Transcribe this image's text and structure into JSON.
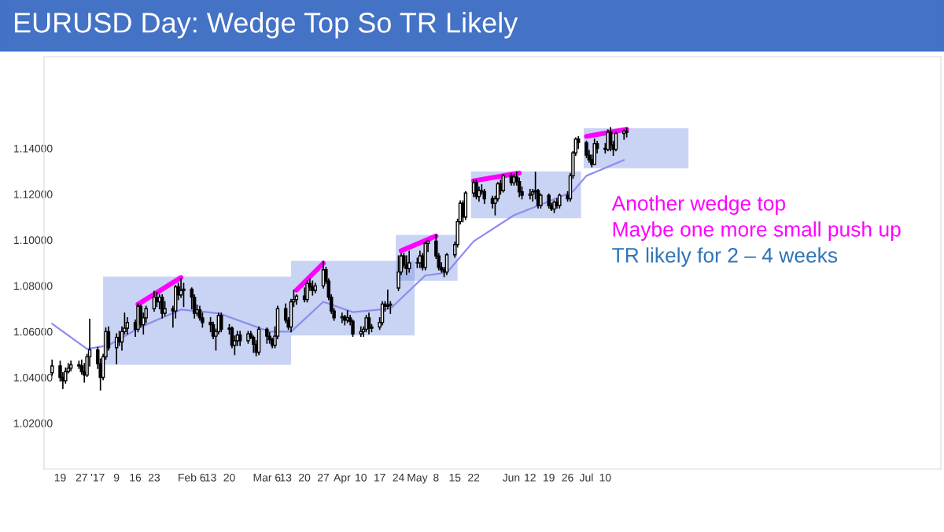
{
  "chart_data": {
    "type": "candlestick",
    "title": "EURUSD Day: Wedge Top So TR Likely",
    "annotations": [
      "Another wedge top",
      "Maybe one more small push up",
      "TR likely for 2 – 4 weeks"
    ],
    "xlim": [
      "2016-12-13",
      "2017-11-12"
    ],
    "ylim": [
      1.0,
      1.18
    ],
    "xticks": [
      {
        "value": "2016-12-19",
        "label": "19"
      },
      {
        "value": "2016-12-27",
        "label": "27"
      },
      {
        "value": "2017-01-02",
        "label": "'17"
      },
      {
        "value": "2017-01-09",
        "label": "9"
      },
      {
        "value": "2017-01-16",
        "label": "16"
      },
      {
        "value": "2017-01-23",
        "label": "23"
      },
      {
        "value": "2017-02-06",
        "label": "Feb 6"
      },
      {
        "value": "2017-02-13",
        "label": "13"
      },
      {
        "value": "2017-02-20",
        "label": "20"
      },
      {
        "value": "2017-03-06",
        "label": "Mar 6"
      },
      {
        "value": "2017-03-13",
        "label": "13"
      },
      {
        "value": "2017-03-20",
        "label": "20"
      },
      {
        "value": "2017-03-27",
        "label": "27"
      },
      {
        "value": "2017-04-03",
        "label": "Apr"
      },
      {
        "value": "2017-04-10",
        "label": "10"
      },
      {
        "value": "2017-04-17",
        "label": "17"
      },
      {
        "value": "2017-04-24",
        "label": "24"
      },
      {
        "value": "2017-05-01",
        "label": "May"
      },
      {
        "value": "2017-05-08",
        "label": "8"
      },
      {
        "value": "2017-05-15",
        "label": "15"
      },
      {
        "value": "2017-05-22",
        "label": "22"
      },
      {
        "value": "2017-06-05",
        "label": "Jun"
      },
      {
        "value": "2017-06-12",
        "label": "12"
      },
      {
        "value": "2017-06-19",
        "label": "19"
      },
      {
        "value": "2017-06-26",
        "label": "26"
      },
      {
        "value": "2017-07-03",
        "label": "Jul"
      },
      {
        "value": "2017-07-10",
        "label": "10"
      }
    ],
    "yticks": [
      {
        "value": 1.02,
        "label": "1.02000"
      },
      {
        "value": 1.04,
        "label": "1.04000"
      },
      {
        "value": 1.06,
        "label": "1.06000"
      },
      {
        "value": 1.08,
        "label": "1.08000"
      },
      {
        "value": 1.1,
        "label": "1.10000"
      },
      {
        "value": 1.12,
        "label": "1.12000"
      },
      {
        "value": 1.14,
        "label": "1.14000"
      }
    ],
    "x": [
      "2016-12-16",
      "2016-12-19",
      "2016-12-20",
      "2016-12-21",
      "2016-12-22",
      "2016-12-23",
      "2016-12-26",
      "2016-12-27",
      "2016-12-28",
      "2016-12-29",
      "2016-12-30",
      "2017-01-02",
      "2017-01-03",
      "2017-01-04",
      "2017-01-05",
      "2017-01-06",
      "2017-01-09",
      "2017-01-10",
      "2017-01-11",
      "2017-01-12",
      "2017-01-13",
      "2017-01-16",
      "2017-01-17",
      "2017-01-18",
      "2017-01-19",
      "2017-01-20",
      "2017-01-23",
      "2017-01-24",
      "2017-01-25",
      "2017-01-26",
      "2017-01-27",
      "2017-01-30",
      "2017-01-31",
      "2017-02-01",
      "2017-02-02",
      "2017-02-03",
      "2017-02-06",
      "2017-02-07",
      "2017-02-08",
      "2017-02-09",
      "2017-02-10",
      "2017-02-13",
      "2017-02-14",
      "2017-02-15",
      "2017-02-16",
      "2017-02-17",
      "2017-02-20",
      "2017-02-21",
      "2017-02-22",
      "2017-02-23",
      "2017-02-24",
      "2017-02-27",
      "2017-02-28",
      "2017-03-01",
      "2017-03-02",
      "2017-03-03",
      "2017-03-06",
      "2017-03-07",
      "2017-03-08",
      "2017-03-09",
      "2017-03-10",
      "2017-03-13",
      "2017-03-14",
      "2017-03-15",
      "2017-03-16",
      "2017-03-17",
      "2017-03-20",
      "2017-03-21",
      "2017-03-22",
      "2017-03-23",
      "2017-03-24",
      "2017-03-27",
      "2017-03-28",
      "2017-03-29",
      "2017-03-30",
      "2017-03-31",
      "2017-04-03",
      "2017-04-04",
      "2017-04-05",
      "2017-04-06",
      "2017-04-07",
      "2017-04-10",
      "2017-04-11",
      "2017-04-12",
      "2017-04-13",
      "2017-04-14",
      "2017-04-17",
      "2017-04-18",
      "2017-04-19",
      "2017-04-20",
      "2017-04-21",
      "2017-04-24",
      "2017-04-25",
      "2017-04-26",
      "2017-04-27",
      "2017-04-28",
      "2017-05-01",
      "2017-05-02",
      "2017-05-03",
      "2017-05-04",
      "2017-05-05",
      "2017-05-08",
      "2017-05-09",
      "2017-05-10",
      "2017-05-11",
      "2017-05-12",
      "2017-05-15",
      "2017-05-16",
      "2017-05-17",
      "2017-05-18",
      "2017-05-19",
      "2017-05-22",
      "2017-05-23",
      "2017-05-24",
      "2017-05-25",
      "2017-05-26",
      "2017-05-29",
      "2017-05-30",
      "2017-05-31",
      "2017-06-01",
      "2017-06-02",
      "2017-06-05",
      "2017-06-06",
      "2017-06-07",
      "2017-06-08",
      "2017-06-09",
      "2017-06-12",
      "2017-06-13",
      "2017-06-14",
      "2017-06-15",
      "2017-06-16",
      "2017-06-19",
      "2017-06-20",
      "2017-06-21",
      "2017-06-22",
      "2017-06-23",
      "2017-06-26",
      "2017-06-27",
      "2017-06-28",
      "2017-06-29",
      "2017-06-30",
      "2017-07-03",
      "2017-07-04",
      "2017-07-05",
      "2017-07-06",
      "2017-07-07",
      "2017-07-10",
      "2017-07-11",
      "2017-07-12",
      "2017-07-13",
      "2017-07-14",
      "2017-07-17",
      "2017-07-18"
    ],
    "ohlc": [
      [
        1.042,
        1.0475,
        1.041,
        1.045
      ],
      [
        1.045,
        1.047,
        1.0385,
        1.04
      ],
      [
        1.04,
        1.042,
        1.0352,
        1.0385
      ],
      [
        1.0385,
        1.044,
        1.0375,
        1.0425
      ],
      [
        1.0425,
        1.046,
        1.042,
        1.044
      ],
      [
        1.044,
        1.047,
        1.043,
        1.0455
      ],
      [
        1.0455,
        1.047,
        1.044,
        1.045
      ],
      [
        1.045,
        1.0475,
        1.0415,
        1.0425
      ],
      [
        1.0425,
        1.046,
        1.038,
        1.041
      ],
      [
        1.041,
        1.05,
        1.0405,
        1.049
      ],
      [
        1.049,
        1.0653,
        1.045,
        1.052
      ],
      [
        1.052,
        1.053,
        1.044,
        1.046
      ],
      [
        1.046,
        1.048,
        1.0345,
        1.04
      ],
      [
        1.04,
        1.05,
        1.039,
        1.049
      ],
      [
        1.049,
        1.0615,
        1.048,
        1.06
      ],
      [
        1.06,
        1.062,
        1.052,
        1.053
      ],
      [
        1.053,
        1.059,
        1.046,
        1.0575
      ],
      [
        1.0575,
        1.06,
        1.054,
        1.0555
      ],
      [
        1.0555,
        1.062,
        1.052,
        1.06
      ],
      [
        1.06,
        1.068,
        1.059,
        1.0615
      ],
      [
        1.0615,
        1.066,
        1.059,
        1.064
      ],
      [
        1.064,
        1.065,
        1.058,
        1.061
      ],
      [
        1.061,
        1.072,
        1.06,
        1.071
      ],
      [
        1.071,
        1.0715,
        1.062,
        1.063
      ],
      [
        1.063,
        1.068,
        1.059,
        1.066
      ],
      [
        1.066,
        1.071,
        1.064,
        1.07
      ],
      [
        1.07,
        1.0775,
        1.069,
        1.075
      ],
      [
        1.075,
        1.077,
        1.071,
        1.073
      ],
      [
        1.073,
        1.076,
        1.07,
        1.075
      ],
      [
        1.075,
        1.076,
        1.066,
        1.068
      ],
      [
        1.068,
        1.073,
        1.067,
        1.07
      ],
      [
        1.07,
        1.071,
        1.062,
        1.069
      ],
      [
        1.069,
        1.08,
        1.066,
        1.0795
      ],
      [
        1.0795,
        1.081,
        1.074,
        1.076
      ],
      [
        1.076,
        1.083,
        1.075,
        1.078
      ],
      [
        1.078,
        1.081,
        1.071,
        1.0785
      ],
      [
        1.0785,
        1.079,
        1.07,
        1.075
      ],
      [
        1.075,
        1.076,
        1.066,
        1.068
      ],
      [
        1.068,
        1.0715,
        1.067,
        1.0695
      ],
      [
        1.0695,
        1.071,
        1.065,
        1.066
      ],
      [
        1.066,
        1.068,
        1.062,
        1.064
      ],
      [
        1.064,
        1.066,
        1.06,
        1.063
      ],
      [
        1.063,
        1.064,
        1.057,
        1.058
      ],
      [
        1.058,
        1.061,
        1.052,
        1.06
      ],
      [
        1.06,
        1.068,
        1.059,
        1.067
      ],
      [
        1.067,
        1.068,
        1.06,
        1.061
      ],
      [
        1.061,
        1.063,
        1.059,
        1.0615
      ],
      [
        1.0615,
        1.062,
        1.053,
        1.054
      ],
      [
        1.054,
        1.058,
        1.05,
        1.056
      ],
      [
        1.056,
        1.06,
        1.054,
        1.0585
      ],
      [
        1.0585,
        1.06,
        1.054,
        1.056
      ],
      [
        1.056,
        1.06,
        1.055,
        1.059
      ],
      [
        1.059,
        1.06,
        1.057,
        1.0575
      ],
      [
        1.0575,
        1.058,
        1.051,
        1.0545
      ],
      [
        1.0545,
        1.056,
        1.0495,
        1.051
      ],
      [
        1.051,
        1.062,
        1.05,
        1.061
      ],
      [
        1.061,
        1.0615,
        1.055,
        1.058
      ],
      [
        1.058,
        1.0595,
        1.055,
        1.0565
      ],
      [
        1.0565,
        1.057,
        1.053,
        1.054
      ],
      [
        1.054,
        1.062,
        1.053,
        1.058
      ],
      [
        1.058,
        1.071,
        1.057,
        1.07
      ],
      [
        1.07,
        1.072,
        1.064,
        1.065
      ],
      [
        1.065,
        1.066,
        1.061,
        1.062
      ],
      [
        1.062,
        1.074,
        1.06,
        1.073
      ],
      [
        1.073,
        1.078,
        1.071,
        1.074
      ],
      [
        1.074,
        1.076,
        1.072,
        1.0755
      ],
      [
        1.0755,
        1.079,
        1.073,
        1.074
      ],
      [
        1.074,
        1.082,
        1.073,
        1.081
      ],
      [
        1.081,
        1.083,
        1.078,
        1.0795
      ],
      [
        1.0795,
        1.082,
        1.076,
        1.078
      ],
      [
        1.078,
        1.081,
        1.077,
        1.08
      ],
      [
        1.08,
        1.0906,
        1.079,
        1.087
      ],
      [
        1.087,
        1.088,
        1.081,
        1.082
      ],
      [
        1.082,
        1.083,
        1.074,
        1.075
      ],
      [
        1.075,
        1.076,
        1.068,
        1.069
      ],
      [
        1.069,
        1.07,
        1.065,
        1.066
      ],
      [
        1.066,
        1.068,
        1.064,
        1.0665
      ],
      [
        1.0665,
        1.067,
        1.063,
        1.065
      ],
      [
        1.065,
        1.069,
        1.064,
        1.066
      ],
      [
        1.066,
        1.067,
        1.063,
        1.0645
      ],
      [
        1.0645,
        1.065,
        1.058,
        1.059
      ],
      [
        1.059,
        1.062,
        1.058,
        1.06
      ],
      [
        1.06,
        1.062,
        1.058,
        1.061
      ],
      [
        1.061,
        1.067,
        1.06,
        1.066
      ],
      [
        1.066,
        1.068,
        1.059,
        1.0615
      ],
      [
        1.0615,
        1.063,
        1.06,
        1.062
      ],
      [
        1.062,
        1.066,
        1.061,
        1.064
      ],
      [
        1.064,
        1.073,
        1.063,
        1.072
      ],
      [
        1.072,
        1.073,
        1.069,
        1.071
      ],
      [
        1.071,
        1.078,
        1.07,
        1.0715
      ],
      [
        1.0715,
        1.073,
        1.068,
        1.072
      ],
      [
        1.079,
        1.093,
        1.078,
        1.086
      ],
      [
        1.086,
        1.094,
        1.085,
        1.093
      ],
      [
        1.093,
        1.094,
        1.088,
        1.089
      ],
      [
        1.089,
        1.093,
        1.085,
        1.0875
      ],
      [
        1.0875,
        1.095,
        1.086,
        1.09
      ],
      [
        1.09,
        1.092,
        1.088,
        1.09
      ],
      [
        1.09,
        1.095,
        1.088,
        1.093
      ],
      [
        1.093,
        1.094,
        1.087,
        1.088
      ],
      [
        1.088,
        1.099,
        1.087,
        1.0985
      ],
      [
        1.0985,
        1.0995,
        1.095,
        1.0995
      ],
      [
        1.0995,
        1.1022,
        1.092,
        1.093
      ],
      [
        1.093,
        1.094,
        1.087,
        1.088
      ],
      [
        1.088,
        1.09,
        1.086,
        1.087
      ],
      [
        1.087,
        1.088,
        1.084,
        1.086
      ],
      [
        1.086,
        1.094,
        1.085,
        1.0935
      ],
      [
        1.0935,
        1.099,
        1.0925,
        1.098
      ],
      [
        1.098,
        1.109,
        1.097,
        1.108
      ],
      [
        1.108,
        1.117,
        1.107,
        1.116
      ],
      [
        1.116,
        1.117,
        1.108,
        1.11
      ],
      [
        1.11,
        1.121,
        1.109,
        1.1205
      ],
      [
        1.1205,
        1.126,
        1.119,
        1.125
      ],
      [
        1.125,
        1.126,
        1.118,
        1.119
      ],
      [
        1.119,
        1.123,
        1.117,
        1.1215
      ],
      [
        1.1215,
        1.124,
        1.12,
        1.121
      ],
      [
        1.121,
        1.122,
        1.116,
        1.118
      ],
      [
        1.118,
        1.119,
        1.114,
        1.116
      ],
      [
        1.116,
        1.119,
        1.111,
        1.118
      ],
      [
        1.118,
        1.125,
        1.117,
        1.1245
      ],
      [
        1.1245,
        1.126,
        1.12,
        1.1215
      ],
      [
        1.1215,
        1.1285,
        1.121,
        1.128
      ],
      [
        1.128,
        1.129,
        1.124,
        1.125
      ],
      [
        1.125,
        1.1285,
        1.124,
        1.1275
      ],
      [
        1.1275,
        1.1295,
        1.124,
        1.1255
      ],
      [
        1.1255,
        1.127,
        1.119,
        1.121
      ],
      [
        1.121,
        1.123,
        1.118,
        1.1195
      ],
      [
        1.1195,
        1.122,
        1.118,
        1.12
      ],
      [
        1.12,
        1.122,
        1.117,
        1.121
      ],
      [
        1.121,
        1.1295,
        1.118,
        1.1215
      ],
      [
        1.1215,
        1.122,
        1.114,
        1.115
      ],
      [
        1.115,
        1.12,
        1.114,
        1.1195
      ],
      [
        1.1195,
        1.12,
        1.114,
        1.115
      ],
      [
        1.115,
        1.116,
        1.113,
        1.1135
      ],
      [
        1.1135,
        1.117,
        1.112,
        1.1165
      ],
      [
        1.1165,
        1.118,
        1.114,
        1.115
      ],
      [
        1.115,
        1.12,
        1.114,
        1.1195
      ],
      [
        1.1195,
        1.121,
        1.117,
        1.118
      ],
      [
        1.118,
        1.129,
        1.117,
        1.128
      ],
      [
        1.128,
        1.1385,
        1.127,
        1.138
      ],
      [
        1.138,
        1.1445,
        1.137,
        1.144
      ],
      [
        1.144,
        1.145,
        1.14,
        1.1425
      ],
      [
        1.1425,
        1.143,
        1.136,
        1.137
      ],
      [
        1.137,
        1.139,
        1.134,
        1.135
      ],
      [
        1.135,
        1.137,
        1.132,
        1.133
      ],
      [
        1.133,
        1.144,
        1.133,
        1.142
      ],
      [
        1.142,
        1.143,
        1.138,
        1.14
      ],
      [
        1.14,
        1.142,
        1.138,
        1.1395
      ],
      [
        1.1395,
        1.148,
        1.139,
        1.147
      ],
      [
        1.147,
        1.149,
        1.139,
        1.1415
      ],
      [
        1.1415,
        1.143,
        1.137,
        1.1395
      ],
      [
        1.1395,
        1.147,
        1.139,
        1.1465
      ],
      [
        1.1465,
        1.148,
        1.144,
        1.1475
      ],
      [
        1.1475,
        1.1488,
        1.145,
        1.147
      ]
    ],
    "series": [
      {
        "type": "area",
        "color": "#7891e1",
        "x": [
          "2017-01-04",
          "2017-03-15"
        ],
        "values": [
          null,
          null
        ],
        "upper": [
          1.084,
          1.084
        ],
        "lower": [
          1.0455,
          1.0455
        ]
      },
      {
        "type": "area",
        "color": "#7891e1",
        "x": [
          "2017-03-15",
          "2017-04-30"
        ],
        "values": [
          null,
          null
        ],
        "upper": [
          1.0909,
          1.0909
        ],
        "lower": [
          1.0583,
          1.0583
        ]
      },
      {
        "type": "area",
        "color": "#7891e1",
        "x": [
          "2017-04-23",
          "2017-05-16"
        ],
        "values": [
          null,
          null
        ],
        "upper": [
          1.1022,
          1.1022
        ],
        "lower": [
          1.0822,
          1.0822
        ]
      },
      {
        "type": "area",
        "color": "#7891e1",
        "x": [
          "2017-05-21",
          "2017-07-01"
        ],
        "values": [
          null,
          null
        ],
        "upper": [
          1.1299,
          1.1299
        ],
        "lower": [
          1.1095,
          1.1095
        ]
      },
      {
        "type": "area",
        "color": "#7891e1",
        "x": [
          "2017-07-02",
          "2017-08-10"
        ],
        "values": [
          null,
          null
        ],
        "upper": [
          1.1487,
          1.1487
        ],
        "lower": [
          1.1313,
          1.1313
        ]
      },
      {
        "type": "line",
        "color": "#8c8cf0",
        "x": [
          "2016-12-16",
          "2016-12-29",
          "2017-01-06",
          "2017-01-18",
          "2017-02-02",
          "2017-02-16",
          "2017-03-07",
          "2017-03-15",
          "2017-03-27",
          "2017-04-07",
          "2017-04-21",
          "2017-05-04",
          "2017-05-12",
          "2017-05-22",
          "2017-06-06",
          "2017-06-16",
          "2017-06-28",
          "2017-07-03",
          "2017-07-17"
        ],
        "values": [
          1.0634,
          1.0524,
          1.054,
          1.062,
          1.0696,
          1.068,
          1.06,
          1.06,
          1.073,
          1.0685,
          1.07,
          1.0845,
          1.0857,
          1.0994,
          1.1108,
          1.1154,
          1.1212,
          1.128,
          1.1349
        ]
      },
      {
        "type": "line",
        "color": "#ff00ff",
        "x": [
          "2017-01-17",
          "2017-02-02"
        ],
        "values": [
          1.0719,
          1.0836
        ]
      },
      {
        "type": "line",
        "color": "#ff00ff",
        "x": [
          "2017-03-17",
          "2017-03-27"
        ],
        "values": [
          1.0781,
          1.0898
        ]
      },
      {
        "type": "line",
        "color": "#ff00ff",
        "x": [
          "2017-04-25",
          "2017-05-08"
        ],
        "values": [
          1.0953,
          1.1017
        ]
      },
      {
        "type": "line",
        "color": "#ff00ff",
        "x": [
          "2017-05-22",
          "2017-06-08"
        ],
        "values": [
          1.1258,
          1.1292
        ]
      },
      {
        "type": "line",
        "color": "#ff00ff",
        "x": [
          "2017-07-03",
          "2017-07-18"
        ],
        "values": [
          1.1452,
          1.1483
        ]
      }
    ]
  }
}
